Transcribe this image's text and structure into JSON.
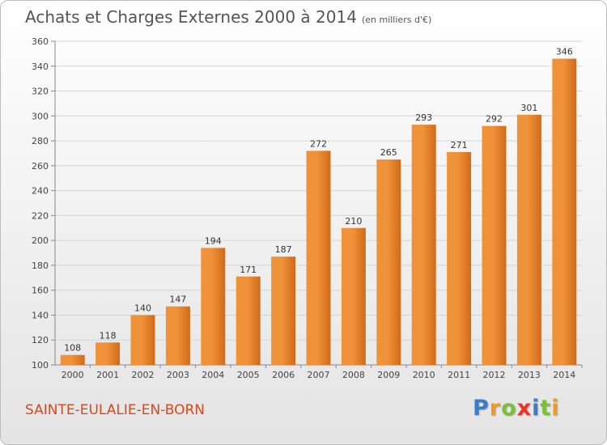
{
  "header": {
    "title": "Achats et Charges Externes 2000 à 2014",
    "unit": "(en milliers d'€)"
  },
  "footer": {
    "town": "SAINTE-EULALIE-EN-BORN",
    "logo": [
      {
        "char": "P",
        "color": "#3b7dc9"
      },
      {
        "char": "r",
        "color": "#f39a1e"
      },
      {
        "char": "o",
        "color": "#7bbf3a"
      },
      {
        "char": "x",
        "color": "#e8342a"
      },
      {
        "char": "i",
        "color": "#3b7dc9"
      },
      {
        "char": "t",
        "color": "#7bbf3a"
      },
      {
        "char": "i",
        "color": "#f39a1e"
      }
    ]
  },
  "chart_data": {
    "type": "bar",
    "categories": [
      "2000",
      "2001",
      "2002",
      "2003",
      "2004",
      "2005",
      "2006",
      "2007",
      "2008",
      "2009",
      "2010",
      "2011",
      "2012",
      "2013",
      "2014"
    ],
    "values": [
      108,
      118,
      140,
      147,
      194,
      171,
      187,
      272,
      210,
      265,
      293,
      271,
      292,
      301,
      346
    ],
    "value_labels": [
      "108",
      "118",
      "140",
      "147",
      "194",
      "171",
      "187",
      "272",
      "210",
      "265",
      "293",
      "271",
      "292",
      "301",
      "346"
    ],
    "ylim": [
      100,
      360
    ],
    "yticks": [
      100,
      120,
      140,
      160,
      180,
      200,
      220,
      240,
      260,
      280,
      300,
      320,
      340,
      360
    ],
    "ytick_labels": [
      "100",
      "120",
      "140",
      "160",
      "180",
      "200",
      "220",
      "240",
      "260",
      "280",
      "300",
      "320",
      "340",
      "360"
    ],
    "grid": true,
    "bar_color": "#f0923a",
    "bar_color_dark": "#d06a1a"
  }
}
